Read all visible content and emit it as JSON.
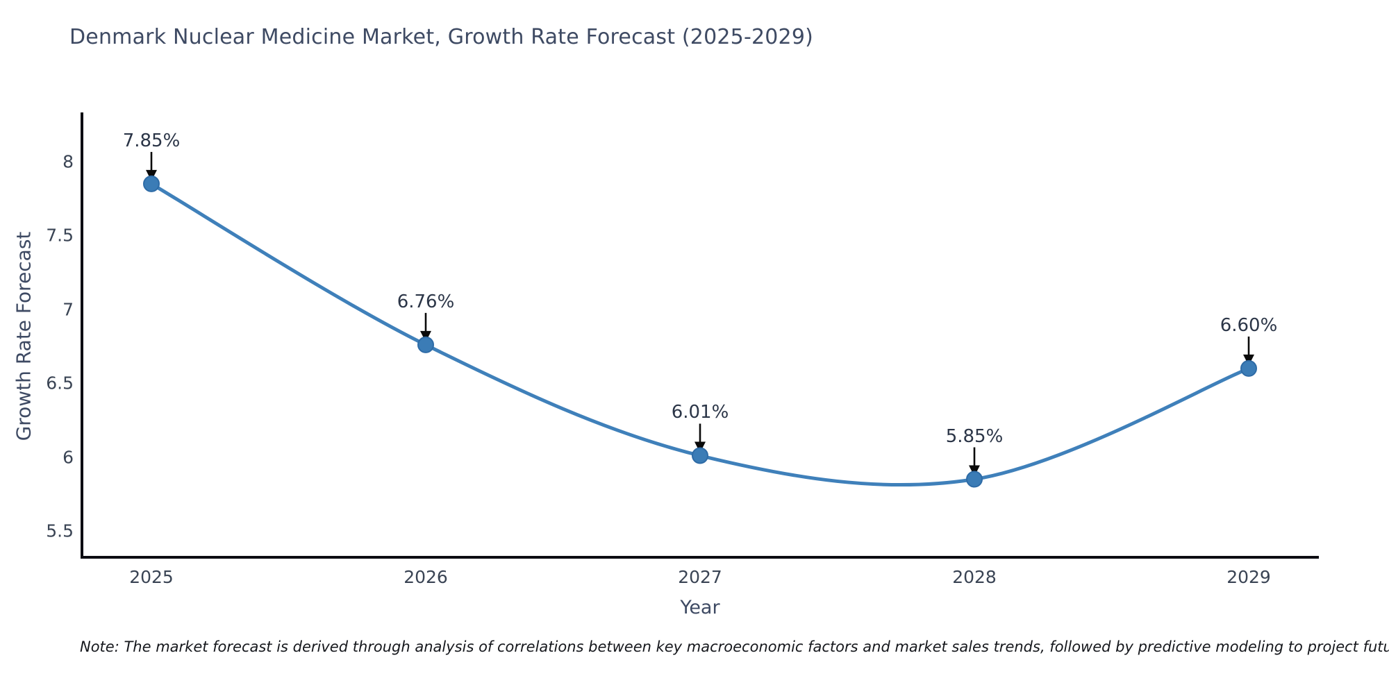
{
  "chart_data": {
    "type": "line",
    "title": "Denmark Nuclear Medicine Market, Growth Rate Forecast (2025-2029)",
    "xlabel": "Year",
    "ylabel": "Growth Rate Forecast",
    "categories": [
      "2025",
      "2026",
      "2027",
      "2028",
      "2029"
    ],
    "series": [
      {
        "name": "Growth Rate Forecast",
        "values": [
          7.85,
          6.76,
          6.01,
          5.85,
          6.6
        ],
        "point_labels": [
          "7.85%",
          "6.76%",
          "6.01%",
          "5.85%",
          "6.60%"
        ]
      }
    ],
    "yticks": [
      8,
      7.5,
      7,
      6.5,
      6,
      5.5
    ],
    "ylim": [
      5.3,
      8.45
    ],
    "grid": false,
    "legend": false,
    "line_shape": "spline",
    "annotations_style": "value labels with downward arrows to markers",
    "note": "Note: The market forecast is derived through analysis of correlations between key macroeconomic factors and market sales trends, followed by predictive modeling to project future sales",
    "colors": {
      "line": "#3f80ba",
      "marker_fill": "#3b7cb6",
      "marker_edge": "#2e6ba6",
      "axis": "#0c0c12",
      "arrow": "#0a0a0a",
      "title_text": "#3e4a63",
      "tick_text": "#3a4454",
      "annotation_text": "#2b3547",
      "note_text": "#15171c",
      "background": "#ffffff"
    }
  }
}
